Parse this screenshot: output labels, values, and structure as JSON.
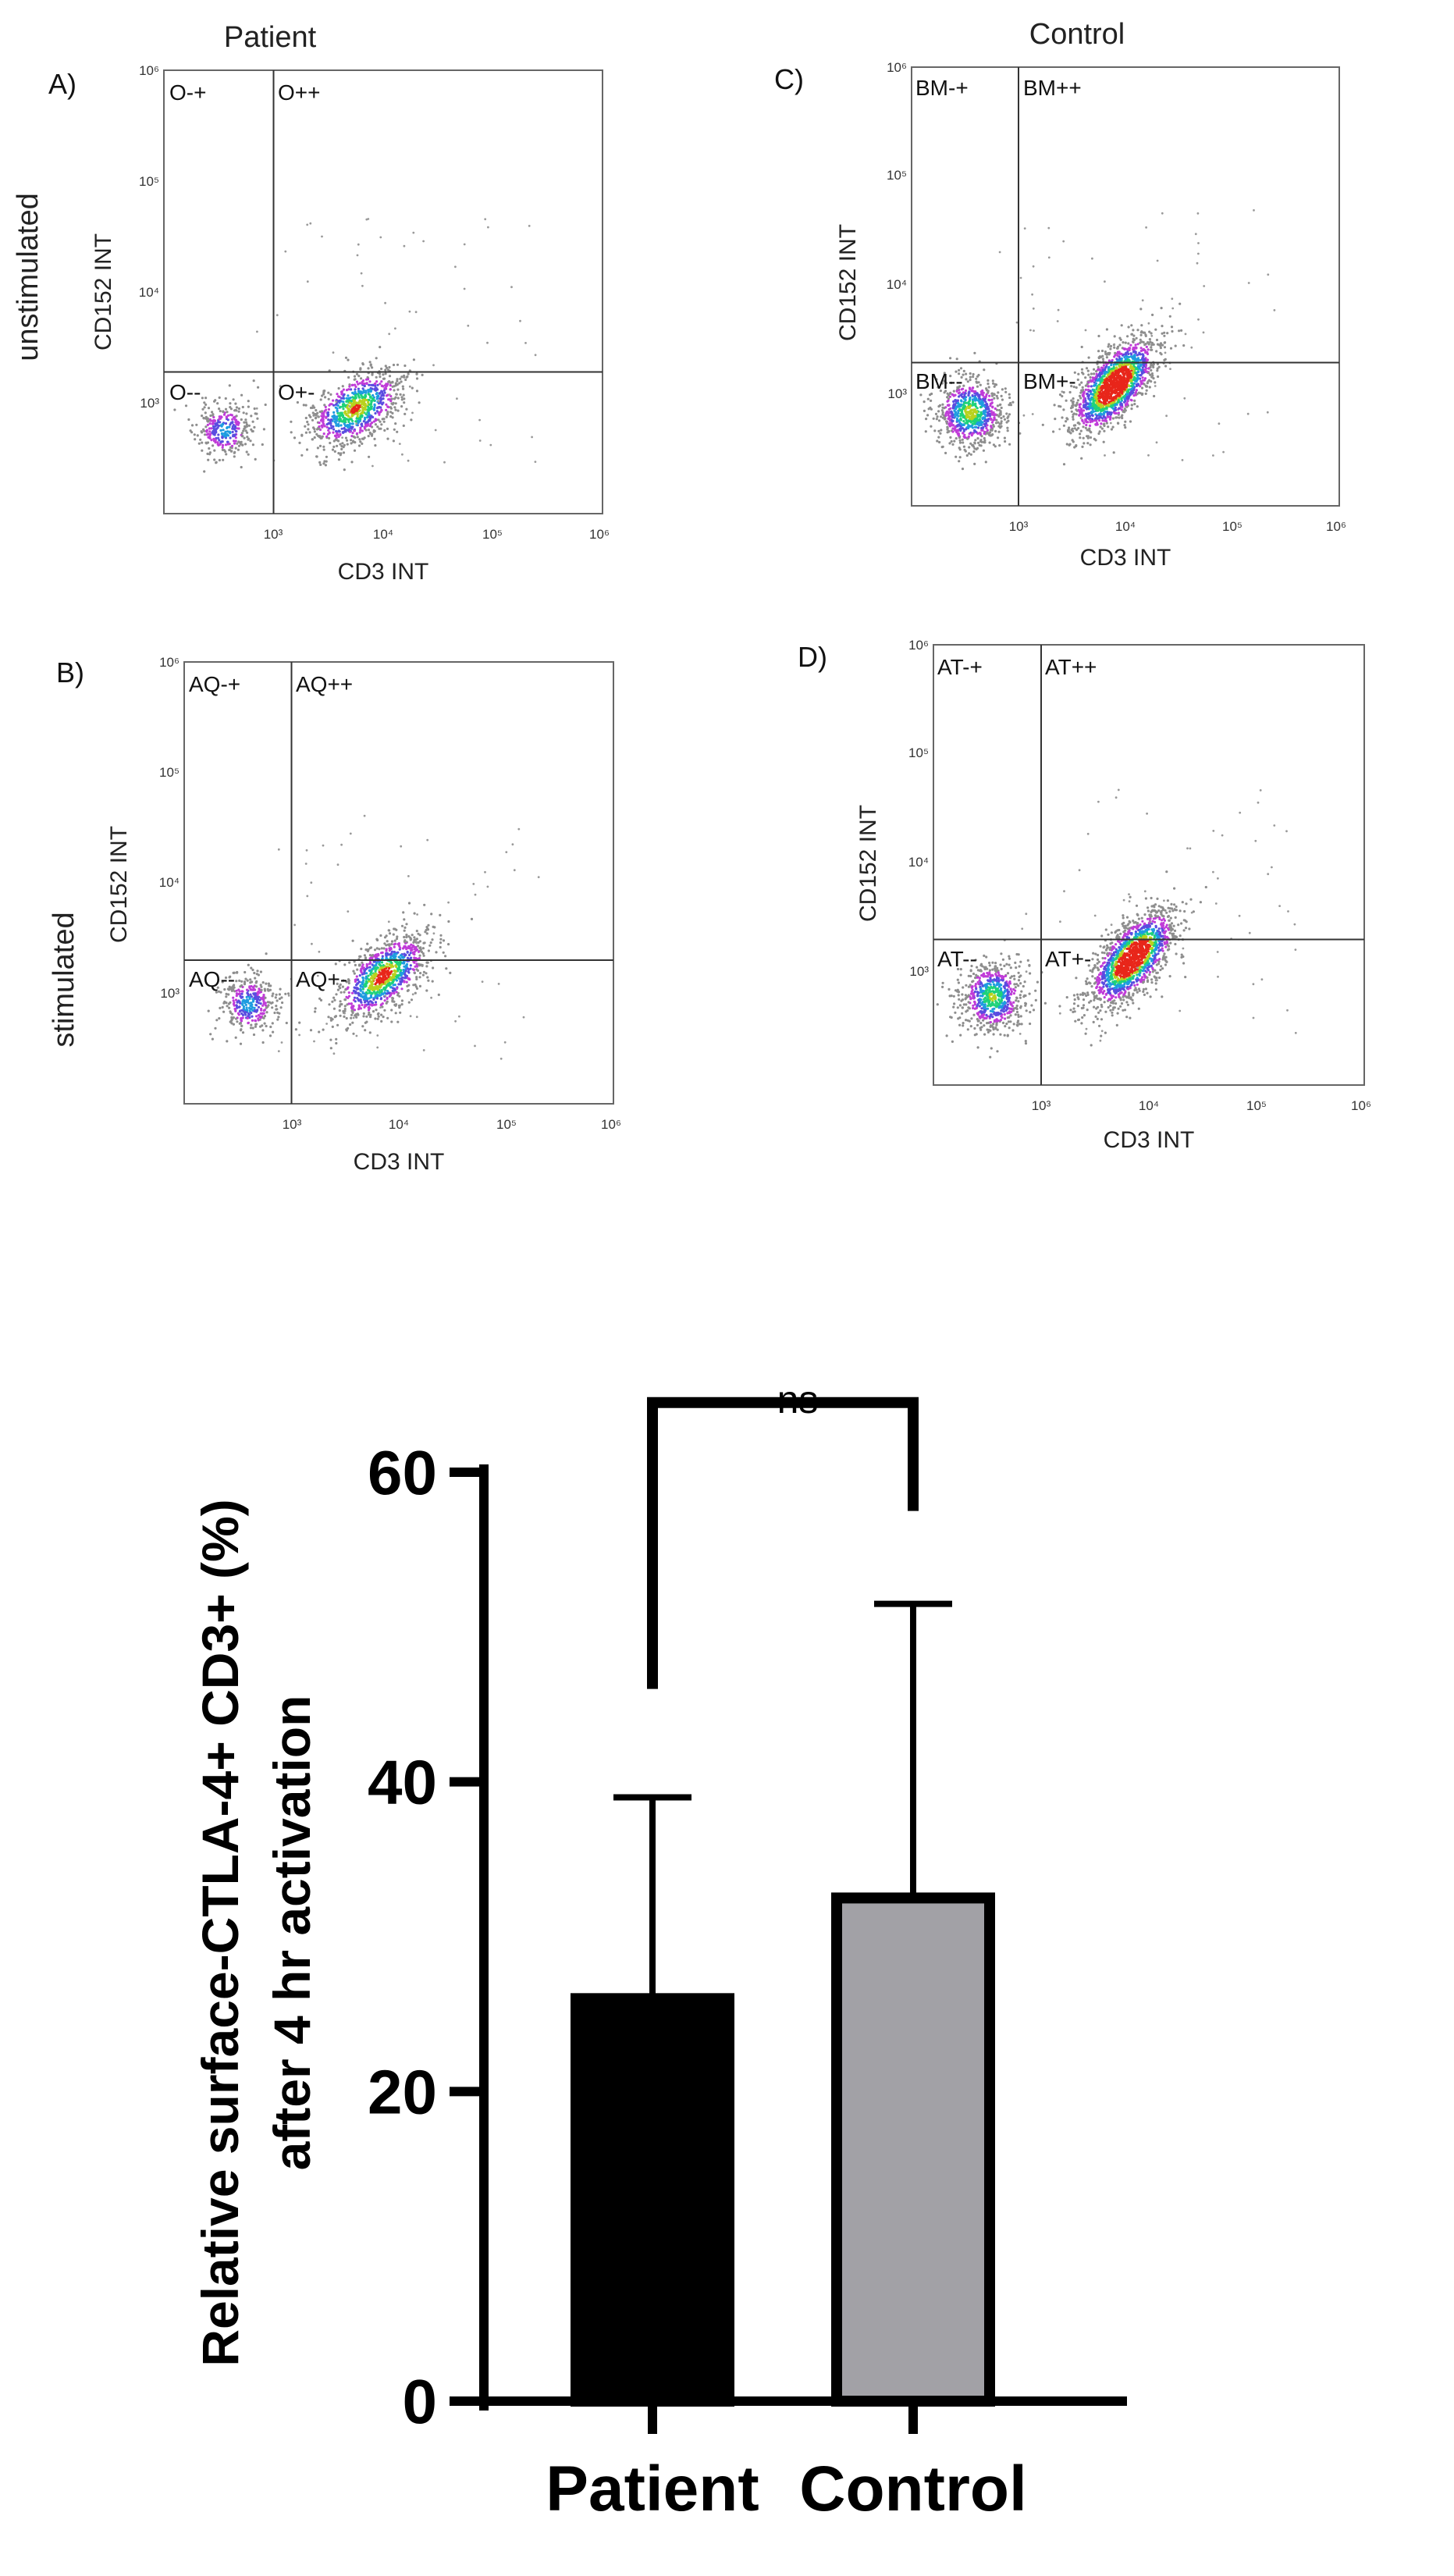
{
  "figure": {
    "column_titles": [
      "Patient",
      "Control"
    ],
    "row_labels": [
      "unstimulated",
      "stimulated"
    ]
  },
  "chart_data": [
    {
      "type": "scatter",
      "panel": "A)",
      "group": "Patient",
      "condition": "unstimulated",
      "xlabel": "CD3 INT",
      "ylabel": "CD152 INT",
      "x_ticks": [
        "10³",
        "10⁴",
        "10⁵",
        "10⁶"
      ],
      "y_ticks": [
        "10³",
        "10⁴",
        "10⁵",
        "10⁶"
      ],
      "x_log_range": [
        2.0,
        6.0
      ],
      "y_log_range": [
        2.0,
        6.0
      ],
      "gate_x": 3.0,
      "gate_y": 3.25,
      "quadrant_labels": [
        "O-+",
        "O++",
        "O--",
        "O+-"
      ],
      "clusters": [
        {
          "cx": 2.55,
          "cy": 2.75,
          "sx": 0.13,
          "sy": 0.13,
          "n": 320,
          "corr": 0.0
        },
        {
          "cx": 3.75,
          "cy": 2.95,
          "sx": 0.22,
          "sy": 0.18,
          "n": 900,
          "corr": 0.5
        }
      ],
      "seed": 11
    },
    {
      "type": "scatter",
      "panel": "B)",
      "group": "Patient",
      "condition": "stimulated",
      "xlabel": "CD3 INT",
      "ylabel": "CD152 INT",
      "x_ticks": [
        "10³",
        "10⁴",
        "10⁵",
        "10⁶"
      ],
      "y_ticks": [
        "10³",
        "10⁴",
        "10⁵",
        "10⁶"
      ],
      "x_log_range": [
        2.0,
        6.0
      ],
      "y_log_range": [
        2.0,
        6.0
      ],
      "gate_x": 3.0,
      "gate_y": 3.2,
      "quadrant_labels": [
        "AQ-+",
        "AQ++",
        "AQ--",
        "AQ+-"
      ],
      "clusters": [
        {
          "cx": 2.6,
          "cy": 2.9,
          "sx": 0.13,
          "sy": 0.14,
          "n": 360,
          "corr": 0.0
        },
        {
          "cx": 3.85,
          "cy": 3.15,
          "sx": 0.22,
          "sy": 0.2,
          "n": 1000,
          "corr": 0.6
        }
      ],
      "seed": 23
    },
    {
      "type": "scatter",
      "panel": "C)",
      "group": "Control",
      "condition": "unstimulated",
      "xlabel": "CD3 INT",
      "ylabel": "CD152 INT",
      "x_ticks": [
        "10³",
        "10⁴",
        "10⁵",
        "10⁶"
      ],
      "y_ticks": [
        "10³",
        "10⁴",
        "10⁵",
        "10⁶"
      ],
      "x_log_range": [
        2.0,
        6.0
      ],
      "y_log_range": [
        2.0,
        6.0
      ],
      "gate_x": 3.0,
      "gate_y": 3.3,
      "quadrant_labels": [
        "BM-+",
        "BM++",
        "BM--",
        "BM+-"
      ],
      "clusters": [
        {
          "cx": 2.55,
          "cy": 2.85,
          "sx": 0.16,
          "sy": 0.16,
          "n": 800,
          "corr": 0.0
        },
        {
          "cx": 3.9,
          "cy": 3.1,
          "sx": 0.2,
          "sy": 0.22,
          "n": 1600,
          "corr": 0.65
        }
      ],
      "seed": 37
    },
    {
      "type": "scatter",
      "panel": "D)",
      "group": "Control",
      "condition": "stimulated",
      "xlabel": "CD3 INT",
      "ylabel": "CD152 INT",
      "x_ticks": [
        "10³",
        "10⁴",
        "10⁵",
        "10⁶"
      ],
      "y_ticks": [
        "10³",
        "10⁴",
        "10⁵",
        "10⁶"
      ],
      "x_log_range": [
        2.0,
        6.0
      ],
      "y_log_range": [
        2.0,
        6.0
      ],
      "gate_x": 3.0,
      "gate_y": 3.3,
      "quadrant_labels": [
        "AT-+",
        "AT++",
        "AT--",
        "AT+-"
      ],
      "clusters": [
        {
          "cx": 2.55,
          "cy": 2.8,
          "sx": 0.15,
          "sy": 0.16,
          "n": 700,
          "corr": 0.0
        },
        {
          "cx": 3.85,
          "cy": 3.15,
          "sx": 0.2,
          "sy": 0.22,
          "n": 1600,
          "corr": 0.65
        }
      ],
      "seed": 53
    },
    {
      "type": "bar",
      "title": "",
      "categories": [
        "Patient",
        "Control"
      ],
      "values": [
        26,
        32.5
      ],
      "error_upper": [
        39,
        51.5
      ],
      "colors": [
        "#000000",
        "#a2a1a6"
      ],
      "ylabel_lines": [
        "Relative surface-CTLA-4+ CD3+ (%)",
        "after 4 hr activation"
      ],
      "ylim": [
        0,
        60
      ],
      "yticks": [
        0,
        20,
        40,
        60
      ],
      "significance": {
        "label": "ns",
        "between": [
          "Patient",
          "Control"
        ]
      }
    }
  ]
}
